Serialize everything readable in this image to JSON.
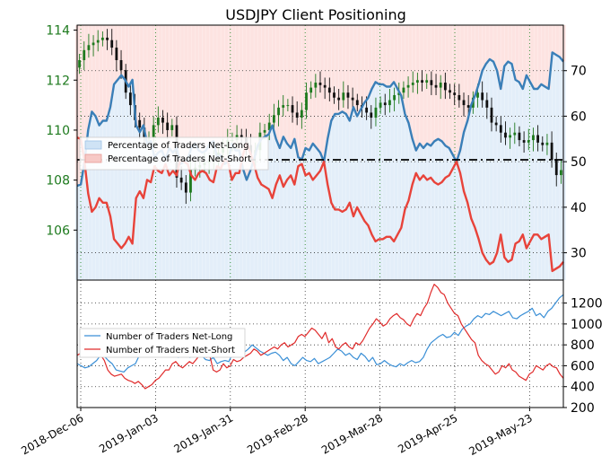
{
  "chart_data": [
    {
      "type": "candlestick+line",
      "title": "USDJPY Client Positioning",
      "x_tick_labels": [
        "2018-Dec-06",
        "2019-Jan-03",
        "2019-Jan-31",
        "2019-Feb-28",
        "2019-Mar-28",
        "2019-Apr-25",
        "2019-May-23"
      ],
      "y_left": {
        "ticks": [
          106,
          108,
          110,
          112,
          114
        ],
        "range": [
          104.0,
          114.2
        ],
        "color": "#1e7a1e"
      },
      "y_right": {
        "ticks": [
          30,
          40,
          50,
          60,
          70
        ],
        "range": [
          24,
          80
        ]
      },
      "reference_line": 50,
      "legend": [
        "Percentage of Traders Net-Long",
        "Percentage of Traders Net-Short"
      ],
      "price_closes": [
        112.8,
        113.2,
        113.4,
        113.5,
        113.6,
        113.7,
        113.6,
        113.3,
        112.8,
        112.4,
        111.5,
        111.0,
        110.4,
        110.1,
        109.7,
        109.7,
        110.2,
        110.5,
        110.3,
        110.0,
        110.2,
        108.1,
        107.9,
        107.5,
        108.4,
        108.5,
        108.6,
        108.7,
        108.8,
        108.8,
        109.1,
        109.3,
        109.6,
        109.6,
        109.8,
        109.7,
        109.4,
        109.0,
        109.2,
        109.9,
        110.0,
        110.3,
        110.6,
        110.9,
        111.0,
        111.0,
        110.7,
        110.5,
        110.8,
        111.5,
        111.7,
        111.9,
        111.8,
        111.7,
        111.5,
        111.3,
        111.2,
        111.5,
        111.3,
        111.2,
        111.0,
        110.9,
        110.7,
        110.5,
        110.9,
        111.1,
        111.0,
        111.2,
        111.4,
        111.5,
        111.7,
        111.8,
        111.9,
        112.0,
        111.9,
        112.0,
        111.8,
        111.7,
        111.9,
        111.6,
        111.5,
        111.4,
        111.2,
        111.0,
        110.9,
        111.3,
        111.5,
        111.2,
        110.9,
        110.3,
        110.2,
        109.9,
        109.7,
        109.8,
        109.9,
        109.6,
        109.5,
        109.6,
        109.8,
        109.5,
        109.4,
        109.5,
        108.8,
        108.2,
        108.4
      ],
      "series": [
        {
          "name": "Percentage of Traders Net-Long",
          "color": "#3a7fb8",
          "values": [
            44.7,
            45.0,
            50.0,
            57.0,
            61.0,
            60.0,
            58.0,
            59.0,
            59.0,
            62.0,
            67.0,
            68.0,
            69.0,
            68.0,
            66.5,
            68.0,
            58.0,
            56.5,
            58.0,
            54.0,
            54.5,
            51.0,
            52.0,
            52.5,
            50.5,
            53.0,
            52.0,
            53.0,
            49.5,
            50.0,
            50.5,
            53.0,
            54.0,
            52.5,
            52.0,
            52.5,
            54.0,
            54.5,
            51.0,
            51.5,
            49.5,
            50.0,
            54.0,
            52.5,
            52.5,
            48.5,
            46.0,
            48.0,
            50.5,
            53.5,
            55.0,
            55.5,
            56.0,
            58.0,
            55.0,
            53.0,
            55.5,
            54.0,
            53.0,
            55.0,
            51.0,
            50.5,
            53.0,
            52.5,
            54.0,
            53.0,
            52.0,
            50.0,
            55.0,
            59.0,
            60.5,
            60.5,
            61.0,
            60.5,
            59.0,
            62.0,
            60.0,
            61.5,
            63.0,
            64.0,
            66.0,
            67.5,
            67.0,
            67.0,
            66.5,
            66.5,
            67.5,
            66.0,
            64.5,
            60.5,
            58.5,
            55.0,
            52.5,
            54.0,
            53.0,
            54.0,
            53.5,
            54.5,
            55.0,
            54.5,
            53.5,
            53.0,
            51.5,
            50.0,
            52.5,
            56.5,
            59.0,
            62.5,
            64.5,
            67.0,
            70.0,
            71.5,
            72.5,
            72.0,
            70.0,
            66.0,
            71.0,
            72.0,
            71.5,
            68.0,
            67.5,
            66.0,
            69.0,
            67.5,
            66.0,
            66.0,
            67.0,
            66.5,
            66.0,
            74.0,
            73.5,
            73.0,
            72.0
          ]
        },
        {
          "name": "Percentage of Traders Net-Short",
          "color": "#e8433a",
          "values": [
            55.3,
            55.0,
            50.0,
            43.0,
            39.0,
            40.0,
            42.0,
            41.0,
            41.0,
            38.0,
            33.0,
            32.0,
            31.0,
            32.0,
            33.5,
            32.0,
            42.0,
            43.5,
            42.0,
            46.0,
            45.5,
            49.0,
            48.0,
            47.5,
            49.5,
            47.0,
            48.0,
            47.0,
            50.5,
            50.0,
            49.5,
            47.0,
            46.0,
            47.5,
            48.0,
            47.5,
            46.0,
            45.5,
            49.0,
            48.5,
            50.5,
            50.0,
            46.0,
            47.5,
            47.5,
            51.5,
            54.0,
            52.0,
            49.5,
            46.5,
            45.0,
            44.5,
            44.0,
            42.0,
            45.0,
            47.0,
            44.5,
            46.0,
            47.0,
            45.0,
            49.0,
            49.5,
            47.0,
            47.5,
            46.0,
            47.0,
            48.0,
            50.0,
            45.0,
            41.0,
            39.5,
            39.5,
            39.0,
            39.5,
            41.0,
            38.0,
            40.0,
            38.5,
            37.0,
            36.0,
            34.0,
            32.5,
            33.0,
            33.0,
            33.5,
            33.5,
            32.5,
            34.0,
            35.5,
            39.5,
            41.5,
            45.0,
            47.5,
            46.0,
            47.0,
            46.0,
            46.5,
            45.5,
            45.0,
            45.5,
            46.5,
            47.0,
            48.5,
            50.0,
            47.5,
            43.5,
            41.0,
            37.5,
            35.5,
            33.0,
            30.0,
            28.5,
            27.5,
            28.0,
            30.0,
            34.0,
            29.0,
            28.0,
            28.5,
            32.0,
            32.5,
            34.0,
            31.0,
            32.5,
            34.0,
            34.0,
            33.0,
            33.5,
            34.0,
            26.0,
            26.5,
            27.0,
            28.0
          ]
        }
      ]
    },
    {
      "type": "line",
      "y_right": {
        "ticks": [
          200,
          400,
          600,
          800,
          1000,
          1200
        ],
        "range": [
          200,
          1420
        ]
      },
      "legend": [
        "Number of Traders Net-Long",
        "Number of Traders Net-Short"
      ],
      "series": [
        {
          "name": "Number of Traders Net-Long",
          "color": "#3a8fd6",
          "values": [
            620,
            600,
            580,
            590,
            620,
            650,
            700,
            690,
            650,
            620,
            560,
            550,
            540,
            580,
            600,
            620,
            700,
            700,
            690,
            720,
            710,
            700,
            720,
            700,
            690,
            720,
            680,
            700,
            720,
            680,
            700,
            720,
            700,
            660,
            650,
            680,
            620,
            640,
            650,
            640,
            720,
            740,
            760,
            730,
            760,
            800,
            770,
            740,
            720,
            700,
            720,
            730,
            700,
            650,
            680,
            620,
            600,
            640,
            680,
            650,
            640,
            670,
            620,
            640,
            660,
            680,
            720,
            760,
            740,
            700,
            720,
            680,
            660,
            720,
            690,
            640,
            680,
            610,
            620,
            650,
            620,
            600,
            590,
            620,
            600,
            630,
            650,
            630,
            640,
            680,
            760,
            820,
            850,
            880,
            900,
            870,
            880,
            920,
            890,
            950,
            980,
            1000,
            1050,
            1080,
            1060,
            1100,
            1090,
            1120,
            1100,
            1080,
            1100,
            1120,
            1060,
            1050,
            1080,
            1100,
            1120,
            1150,
            1080,
            1100,
            1060,
            1120,
            1150,
            1200,
            1250,
            1280
          ]
        },
        {
          "name": "Number of Traders Net-Short",
          "color": "#e02a2a",
          "values": [
            700,
            720,
            760,
            780,
            820,
            800,
            760,
            700,
            650,
            560,
            520,
            500,
            510,
            520,
            480,
            460,
            450,
            430,
            450,
            420,
            380,
            400,
            420,
            460,
            480,
            520,
            560,
            560,
            620,
            640,
            600,
            580,
            610,
            640,
            620,
            660,
            700,
            720,
            680,
            700,
            560,
            540,
            560,
            620,
            580,
            600,
            660,
            640,
            650,
            680,
            700,
            720,
            760,
            740,
            700,
            720,
            740,
            760,
            780,
            760,
            800,
            820,
            780,
            800,
            820,
            880,
            900,
            880,
            920,
            960,
            940,
            900,
            860,
            920,
            820,
            860,
            780,
            760,
            800,
            820,
            780,
            760,
            820,
            800,
            840,
            900,
            960,
            1000,
            1050,
            1020,
            980,
            1000,
            1050,
            1080,
            1100,
            1060,
            1040,
            1000,
            980,
            1050,
            1100,
            1080,
            1150,
            1200,
            1300,
            1380,
            1350,
            1300,
            1280,
            1200,
            1150,
            1100,
            1080,
            1000,
            950,
            900,
            850,
            820,
            700,
            650,
            620,
            600,
            560,
            520,
            540,
            600,
            580,
            620,
            560,
            540,
            500,
            480,
            460,
            520,
            540,
            600,
            580,
            560,
            600,
            620,
            590,
            580,
            520,
            480
          ]
        }
      ]
    }
  ]
}
